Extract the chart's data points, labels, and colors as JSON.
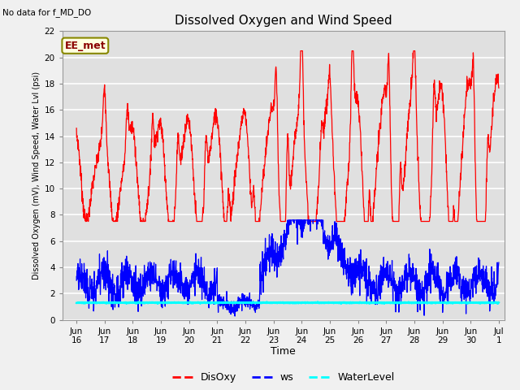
{
  "title": "Dissolved Oxygen and Wind Speed",
  "xlabel": "Time",
  "ylabel": "Dissolved Oxygen (mV), Wind Speed, Water Lvl (psi)",
  "ylim": [
    0,
    22
  ],
  "xlim_days": [
    15.5,
    31.2
  ],
  "annotation_topleft": "No data for f_MD_DO",
  "annotation_box": "EE_met",
  "legend_labels": [
    "DisOxy",
    "ws",
    "WaterLevel"
  ],
  "legend_colors": [
    "red",
    "blue",
    "cyan"
  ],
  "water_level_value": 1.3,
  "background_color": "#f0f0f0",
  "plot_bg_color": "#e0e0e0",
  "grid_color": "#ffffff",
  "xtick_labels": [
    "Jun\n16",
    "Jun\n17",
    "Jun\n18",
    "Jun\n19",
    "Jun\n20",
    "Jun\n21",
    "Jun\n22",
    "Jun\n23",
    "Jun\n24",
    "Jun\n25",
    "Jun\n26",
    "Jun\n27",
    "Jun\n28",
    "Jun\n29",
    "Jun\n30",
    "Jul\n1"
  ],
  "xtick_positions": [
    16,
    17,
    18,
    19,
    20,
    21,
    22,
    23,
    24,
    25,
    26,
    27,
    28,
    29,
    30,
    31
  ],
  "ytick_labels": [
    "0",
    "2",
    "4",
    "6",
    "8",
    "10",
    "12",
    "14",
    "16",
    "18",
    "20",
    "22"
  ],
  "ytick_positions": [
    0,
    2,
    4,
    6,
    8,
    10,
    12,
    14,
    16,
    18,
    20,
    22
  ]
}
